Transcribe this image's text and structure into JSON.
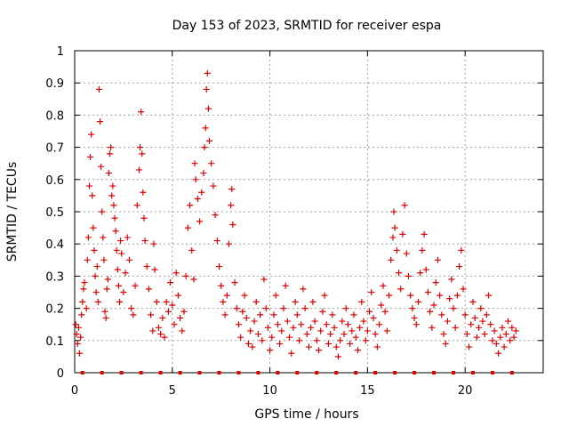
{
  "chart_data": {
    "type": "scatter",
    "title": "Day 153 of 2023, SRMTID for receiver espa",
    "xlabel": "GPS time / hours",
    "ylabel": "SRMTID / TECUs",
    "xlim": [
      0,
      24
    ],
    "ylim": [
      0,
      1
    ],
    "x_ticks": [
      0,
      5,
      10,
      15,
      20
    ],
    "x_tick_labels": [
      "0",
      "5",
      "10",
      "15",
      "20"
    ],
    "y_ticks": [
      0,
      0.1,
      0.2,
      0.3,
      0.4,
      0.5,
      0.6,
      0.7,
      0.8,
      0.9,
      1
    ],
    "y_tick_labels": [
      "0",
      "0.1",
      "0.2",
      "0.3",
      "0.4",
      "0.5",
      "0.6",
      "0.7",
      "0.8",
      "0.9",
      "1"
    ],
    "grid": true,
    "marker": "+",
    "color": "#e00000",
    "series": [
      {
        "name": "SRMTID",
        "points": [
          [
            0.05,
            0.15
          ],
          [
            0.1,
            0.12
          ],
          [
            0.15,
            0.09
          ],
          [
            0.2,
            0.14
          ],
          [
            0.25,
            0.06
          ],
          [
            0.3,
            0.11
          ],
          [
            0.35,
            0.18
          ],
          [
            0.4,
            0.22
          ],
          [
            0.45,
            0.26
          ],
          [
            0.5,
            0.28
          ],
          [
            0.6,
            0.2
          ],
          [
            0.65,
            0.35
          ],
          [
            0.7,
            0.42
          ],
          [
            0.75,
            0.58
          ],
          [
            0.8,
            0.67
          ],
          [
            0.85,
            0.74
          ],
          [
            0.9,
            0.55
          ],
          [
            0.95,
            0.45
          ],
          [
            1.0,
            0.38
          ],
          [
            1.05,
            0.3
          ],
          [
            1.1,
            0.25
          ],
          [
            1.15,
            0.33
          ],
          [
            1.2,
            0.22
          ],
          [
            1.25,
            0.88
          ],
          [
            1.3,
            0.78
          ],
          [
            1.35,
            0.64
          ],
          [
            1.4,
            0.5
          ],
          [
            1.45,
            0.42
          ],
          [
            1.5,
            0.35
          ],
          [
            1.55,
            0.19
          ],
          [
            1.6,
            0.17
          ],
          [
            1.65,
            0.26
          ],
          [
            1.7,
            0.29
          ],
          [
            1.75,
            0.62
          ],
          [
            1.8,
            0.68
          ],
          [
            1.85,
            0.7
          ],
          [
            1.9,
            0.55
          ],
          [
            1.95,
            0.58
          ],
          [
            2.0,
            0.52
          ],
          [
            2.05,
            0.48
          ],
          [
            2.1,
            0.44
          ],
          [
            2.15,
            0.38
          ],
          [
            2.2,
            0.32
          ],
          [
            2.25,
            0.27
          ],
          [
            2.3,
            0.22
          ],
          [
            2.35,
            0.41
          ],
          [
            2.4,
            0.37
          ],
          [
            2.5,
            0.25
          ],
          [
            2.6,
            0.31
          ],
          [
            2.7,
            0.42
          ],
          [
            2.8,
            0.35
          ],
          [
            2.9,
            0.2
          ],
          [
            3.0,
            0.18
          ],
          [
            3.1,
            0.27
          ],
          [
            3.2,
            0.52
          ],
          [
            3.3,
            0.63
          ],
          [
            3.35,
            0.7
          ],
          [
            3.4,
            0.81
          ],
          [
            3.45,
            0.68
          ],
          [
            3.5,
            0.56
          ],
          [
            3.55,
            0.48
          ],
          [
            3.6,
            0.41
          ],
          [
            3.7,
            0.33
          ],
          [
            3.8,
            0.26
          ],
          [
            3.9,
            0.18
          ],
          [
            4.0,
            0.13
          ],
          [
            4.05,
            0.4
          ],
          [
            4.1,
            0.32
          ],
          [
            4.2,
            0.22
          ],
          [
            4.3,
            0.14
          ],
          [
            4.4,
            0.12
          ],
          [
            4.5,
            0.17
          ],
          [
            4.6,
            0.11
          ],
          [
            4.7,
            0.22
          ],
          [
            4.8,
            0.19
          ],
          [
            4.9,
            0.28
          ],
          [
            5.0,
            0.21
          ],
          [
            5.1,
            0.15
          ],
          [
            5.2,
            0.31
          ],
          [
            5.3,
            0.24
          ],
          [
            5.4,
            0.17
          ],
          [
            5.5,
            0.13
          ],
          [
            5.6,
            0.19
          ],
          [
            5.7,
            0.3
          ],
          [
            5.8,
            0.45
          ],
          [
            5.9,
            0.52
          ],
          [
            6.0,
            0.38
          ],
          [
            6.1,
            0.29
          ],
          [
            6.15,
            0.65
          ],
          [
            6.2,
            0.6
          ],
          [
            6.3,
            0.54
          ],
          [
            6.4,
            0.47
          ],
          [
            6.5,
            0.56
          ],
          [
            6.6,
            0.62
          ],
          [
            6.65,
            0.7
          ],
          [
            6.7,
            0.76
          ],
          [
            6.75,
            0.88
          ],
          [
            6.8,
            0.93
          ],
          [
            6.85,
            0.82
          ],
          [
            6.9,
            0.72
          ],
          [
            7.0,
            0.65
          ],
          [
            7.1,
            0.58
          ],
          [
            7.2,
            0.49
          ],
          [
            7.3,
            0.41
          ],
          [
            7.4,
            0.33
          ],
          [
            7.5,
            0.27
          ],
          [
            7.6,
            0.22
          ],
          [
            7.7,
            0.18
          ],
          [
            7.8,
            0.24
          ],
          [
            7.9,
            0.4
          ],
          [
            8.0,
            0.52
          ],
          [
            8.05,
            0.57
          ],
          [
            8.1,
            0.46
          ],
          [
            8.2,
            0.28
          ],
          [
            8.3,
            0.2
          ],
          [
            8.4,
            0.15
          ],
          [
            8.5,
            0.11
          ],
          [
            8.6,
            0.19
          ],
          [
            8.7,
            0.24
          ],
          [
            8.8,
            0.17
          ],
          [
            8.9,
            0.09
          ],
          [
            9.0,
            0.13
          ],
          [
            9.1,
            0.08
          ],
          [
            9.2,
            0.16
          ],
          [
            9.3,
            0.22
          ],
          [
            9.4,
            0.12
          ],
          [
            9.5,
            0.18
          ],
          [
            9.6,
            0.1
          ],
          [
            9.7,
            0.29
          ],
          [
            9.8,
            0.2
          ],
          [
            9.9,
            0.14
          ],
          [
            10.0,
            0.07
          ],
          [
            10.1,
            0.11
          ],
          [
            10.2,
            0.18
          ],
          [
            10.3,
            0.24
          ],
          [
            10.4,
            0.15
          ],
          [
            10.5,
            0.09
          ],
          [
            10.6,
            0.13
          ],
          [
            10.7,
            0.2
          ],
          [
            10.8,
            0.27
          ],
          [
            10.9,
            0.16
          ],
          [
            11.0,
            0.11
          ],
          [
            11.1,
            0.06
          ],
          [
            11.2,
            0.14
          ],
          [
            11.3,
            0.22
          ],
          [
            11.4,
            0.18
          ],
          [
            11.5,
            0.1
          ],
          [
            11.6,
            0.15
          ],
          [
            11.7,
            0.26
          ],
          [
            11.8,
            0.2
          ],
          [
            11.9,
            0.12
          ],
          [
            12.0,
            0.08
          ],
          [
            12.1,
            0.14
          ],
          [
            12.2,
            0.22
          ],
          [
            12.3,
            0.16
          ],
          [
            12.4,
            0.1
          ],
          [
            12.5,
            0.07
          ],
          [
            12.6,
            0.13
          ],
          [
            12.7,
            0.19
          ],
          [
            12.8,
            0.24
          ],
          [
            12.9,
            0.15
          ],
          [
            13.0,
            0.09
          ],
          [
            13.1,
            0.12
          ],
          [
            13.2,
            0.18
          ],
          [
            13.3,
            0.14
          ],
          [
            13.4,
            0.08
          ],
          [
            13.5,
            0.05
          ],
          [
            13.6,
            0.1
          ],
          [
            13.7,
            0.16
          ],
          [
            13.8,
            0.12
          ],
          [
            13.9,
            0.2
          ],
          [
            14.0,
            0.15
          ],
          [
            14.1,
            0.09
          ],
          [
            14.2,
            0.13
          ],
          [
            14.3,
            0.18
          ],
          [
            14.4,
            0.11
          ],
          [
            14.5,
            0.07
          ],
          [
            14.6,
            0.14
          ],
          [
            14.7,
            0.22
          ],
          [
            14.8,
            0.16
          ],
          [
            14.9,
            0.1
          ],
          [
            15.0,
            0.13
          ],
          [
            15.1,
            0.19
          ],
          [
            15.2,
            0.25
          ],
          [
            15.3,
            0.17
          ],
          [
            15.4,
            0.12
          ],
          [
            15.5,
            0.08
          ],
          [
            15.6,
            0.15
          ],
          [
            15.7,
            0.21
          ],
          [
            15.8,
            0.27
          ],
          [
            15.9,
            0.19
          ],
          [
            16.0,
            0.13
          ],
          [
            16.1,
            0.24
          ],
          [
            16.2,
            0.35
          ],
          [
            16.3,
            0.42
          ],
          [
            16.35,
            0.5
          ],
          [
            16.4,
            0.45
          ],
          [
            16.5,
            0.38
          ],
          [
            16.6,
            0.31
          ],
          [
            16.7,
            0.26
          ],
          [
            16.8,
            0.43
          ],
          [
            16.9,
            0.52
          ],
          [
            17.0,
            0.37
          ],
          [
            17.1,
            0.3
          ],
          [
            17.2,
            0.24
          ],
          [
            17.3,
            0.2
          ],
          [
            17.4,
            0.17
          ],
          [
            17.5,
            0.15
          ],
          [
            17.6,
            0.22
          ],
          [
            17.7,
            0.31
          ],
          [
            17.8,
            0.38
          ],
          [
            17.9,
            0.43
          ],
          [
            18.0,
            0.32
          ],
          [
            18.1,
            0.25
          ],
          [
            18.2,
            0.19
          ],
          [
            18.3,
            0.14
          ],
          [
            18.4,
            0.21
          ],
          [
            18.5,
            0.28
          ],
          [
            18.6,
            0.35
          ],
          [
            18.7,
            0.24
          ],
          [
            18.8,
            0.18
          ],
          [
            18.9,
            0.12
          ],
          [
            19.0,
            0.09
          ],
          [
            19.1,
            0.16
          ],
          [
            19.2,
            0.23
          ],
          [
            19.3,
            0.29
          ],
          [
            19.4,
            0.2
          ],
          [
            19.5,
            0.14
          ],
          [
            19.6,
            0.24
          ],
          [
            19.7,
            0.33
          ],
          [
            19.8,
            0.38
          ],
          [
            19.9,
            0.26
          ],
          [
            20.0,
            0.18
          ],
          [
            20.1,
            0.12
          ],
          [
            20.2,
            0.08
          ],
          [
            20.3,
            0.15
          ],
          [
            20.4,
            0.22
          ],
          [
            20.5,
            0.17
          ],
          [
            20.6,
            0.11
          ],
          [
            20.7,
            0.14
          ],
          [
            20.8,
            0.2
          ],
          [
            20.9,
            0.16
          ],
          [
            21.0,
            0.12
          ],
          [
            21.1,
            0.18
          ],
          [
            21.2,
            0.24
          ],
          [
            21.3,
            0.15
          ],
          [
            21.4,
            0.1
          ],
          [
            21.5,
            0.13
          ],
          [
            21.6,
            0.09
          ],
          [
            21.7,
            0.06
          ],
          [
            21.8,
            0.11
          ],
          [
            21.9,
            0.14
          ],
          [
            22.0,
            0.08
          ],
          [
            22.1,
            0.12
          ],
          [
            22.2,
            0.16
          ],
          [
            22.3,
            0.1
          ],
          [
            22.4,
            0.14
          ],
          [
            22.5,
            0.11
          ],
          [
            22.6,
            0.13
          ]
        ]
      }
    ],
    "baseline_markers": {
      "y": 0,
      "x": [
        0.4,
        1.4,
        2.4,
        3.4,
        4.4,
        5.4,
        6.4,
        7.4,
        8.4,
        9.4,
        10.4,
        11.4,
        12.4,
        13.4,
        14.4,
        15.4,
        16.4,
        17.4,
        18.4,
        19.4,
        20.4,
        21.4,
        22.4
      ]
    }
  }
}
